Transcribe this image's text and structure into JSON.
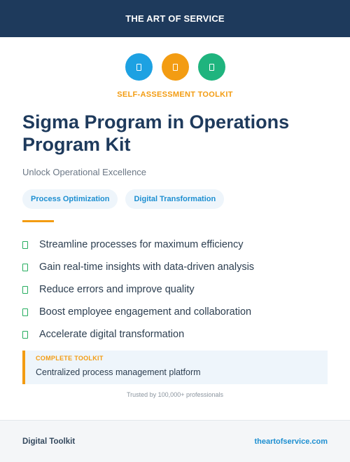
{
  "header": {
    "title": "THE ART OF SERVICE"
  },
  "icons": [
    {
      "name": "icon-placeholder",
      "color": "#1da1e2"
    },
    {
      "name": "icon-placeholder",
      "color": "#f39c12"
    },
    {
      "name": "icon-placeholder",
      "color": "#1fb47e"
    }
  ],
  "kicker": "SELF-ASSESSMENT TOOLKIT",
  "title": "Sigma Program in Operations Program Kit",
  "subtitle": "Unlock Operational Excellence",
  "tags": [
    "Process Optimization",
    "Digital Transformation"
  ],
  "features": [
    "Streamline processes for maximum efficiency",
    "Gain real-time insights with data-driven analysis",
    "Reduce errors and improve quality",
    "Boost employee engagement and collaboration",
    "Accelerate digital transformation"
  ],
  "callout": {
    "label": "COMPLETE TOOLKIT",
    "text": "Centralized process management platform"
  },
  "trusted": "Trusted by 100,000+ professionals",
  "footer": {
    "left": "Digital Toolkit",
    "link": "theartofservice.com"
  },
  "colors": {
    "brand_navy": "#1e3a5c",
    "accent_orange": "#f39c12",
    "accent_blue": "#1d8fd1",
    "accent_green": "#27ae60"
  }
}
